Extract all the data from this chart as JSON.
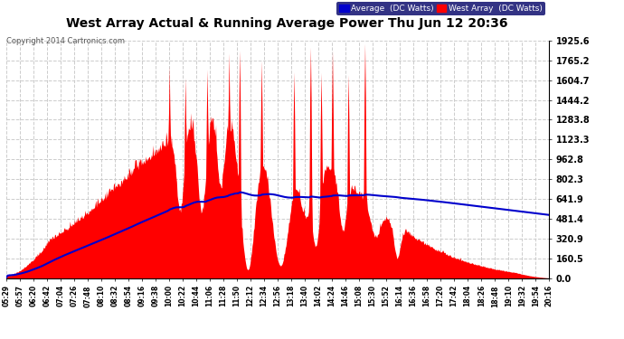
{
  "title": "West Array Actual & Running Average Power Thu Jun 12 20:36",
  "copyright": "Copyright 2014 Cartronics.com",
  "legend_avg": "Average  (DC Watts)",
  "legend_west": "West Array  (DC Watts)",
  "ylabel_values": [
    0.0,
    160.5,
    320.9,
    481.4,
    641.9,
    802.3,
    962.8,
    1123.3,
    1283.8,
    1444.2,
    1604.7,
    1765.2,
    1925.6
  ],
  "ymax": 1925.6,
  "ymin": 0.0,
  "bg_color": "#ffffff",
  "plot_bg_color": "#ffffff",
  "grid_color": "#cccccc",
  "bar_color": "#ff0000",
  "line_color": "#0000cc",
  "title_color": "#000000",
  "x_labels": [
    "05:29",
    "05:57",
    "06:20",
    "06:42",
    "07:04",
    "07:26",
    "07:48",
    "08:10",
    "08:32",
    "08:54",
    "09:16",
    "09:38",
    "10:00",
    "10:22",
    "10:44",
    "11:06",
    "11:28",
    "11:50",
    "12:12",
    "12:34",
    "12:56",
    "13:18",
    "13:40",
    "14:02",
    "14:24",
    "14:46",
    "15:08",
    "15:30",
    "15:52",
    "16:14",
    "16:36",
    "16:58",
    "17:20",
    "17:42",
    "18:04",
    "18:26",
    "18:48",
    "19:10",
    "19:32",
    "19:54",
    "20:16"
  ]
}
